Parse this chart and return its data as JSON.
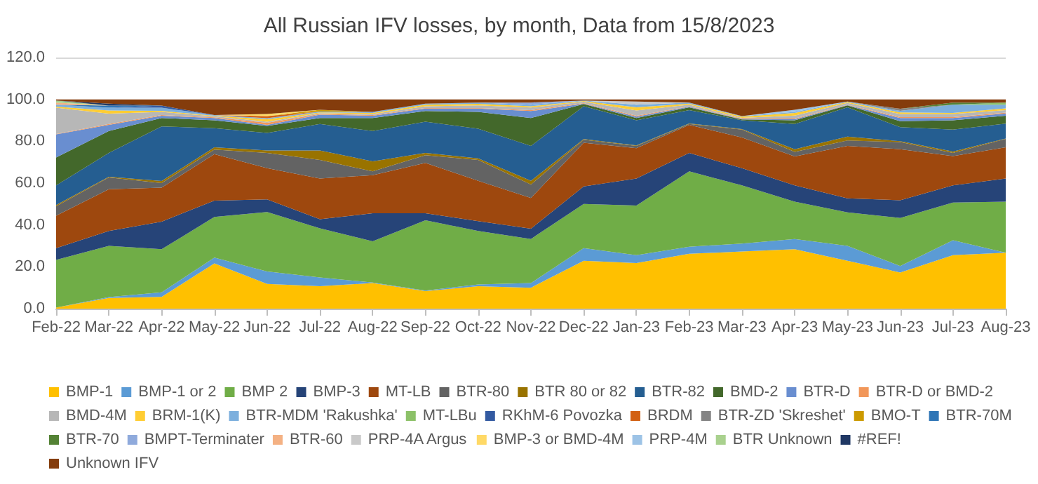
{
  "chart_data": {
    "type": "area",
    "stacked": true,
    "title": "All Russian IFV losses, by month, Data from 15/8/2023",
    "categories": [
      "Feb-22",
      "Mar-22",
      "Apr-22",
      "May-22",
      "Jun-22",
      "Jul-22",
      "Aug-22",
      "Sep-22",
      "Oct-22",
      "Nov-22",
      "Dec-22",
      "Jan-23",
      "Feb-23",
      "Mar-23",
      "Apr-23",
      "May-23",
      "Jun-23",
      "Jul-23",
      "Aug-23"
    ],
    "ylim": [
      0,
      120
    ],
    "yticks": [
      {
        "value": 0,
        "label": "0.0"
      },
      {
        "value": 20,
        "label": "20.0"
      },
      {
        "value": 40,
        "label": "40.0"
      },
      {
        "value": 60,
        "label": "60.0"
      },
      {
        "value": 80,
        "label": "80.0"
      },
      {
        "value": 100,
        "label": "100.0"
      },
      {
        "value": 120,
        "label": "120.0"
      }
    ],
    "grid": "y",
    "legend": "bottom",
    "series": [
      {
        "name": "BMP-1",
        "color": "#ffc000",
        "values": [
          0.5,
          5.1,
          5.6,
          21.6,
          11.8,
          10.7,
          12.2,
          8.4,
          10.7,
          10,
          22.9,
          21.8,
          26.2,
          27.3,
          28.4,
          22.9,
          17.3,
          25.6,
          26.7
        ]
      },
      {
        "name": "BMP-1 or 2",
        "color": "#5b9bd5",
        "values": [
          0,
          0.4,
          2.2,
          2.8,
          6,
          4.2,
          0.3,
          0.2,
          0.9,
          2.2,
          6,
          3.8,
          3.4,
          3.8,
          4.9,
          7.1,
          3.1,
          7.1,
          0
        ]
      },
      {
        "name": "BMP 2",
        "color": "#70ad47",
        "values": [
          22.8,
          24.5,
          20.6,
          19.4,
          28.4,
          23.5,
          19.7,
          33.6,
          25.5,
          21.1,
          21.1,
          23.7,
          36,
          27.8,
          17.8,
          16,
          22.9,
          18,
          24.4
        ]
      },
      {
        "name": "BMP-3",
        "color": "#264478",
        "values": [
          5.6,
          7.1,
          13.2,
          7.8,
          6,
          4.3,
          13.4,
          3.4,
          4.7,
          4.9,
          8.4,
          12.9,
          8.8,
          8.2,
          7.8,
          6.7,
          8.5,
          8.2,
          11.1
        ]
      },
      {
        "name": "MT-LB",
        "color": "#9e480e",
        "values": [
          15.5,
          20,
          16.2,
          22.2,
          14.9,
          19.5,
          18.2,
          24,
          19.3,
          14.7,
          20.9,
          14.5,
          13.4,
          14.7,
          13.8,
          25.1,
          24.4,
          14,
          14.9
        ]
      },
      {
        "name": "BTR-80",
        "color": "#636363",
        "values": [
          4.5,
          5.6,
          2.2,
          2.2,
          7.3,
          8.9,
          1.8,
          3.7,
          10,
          6.4,
          1.4,
          1.1,
          0.4,
          3.8,
          2.2,
          2.6,
          3.4,
          1.5,
          4
        ]
      },
      {
        "name": "BTR 80 or 82",
        "color": "#997300",
        "values": [
          0.6,
          0.3,
          1,
          1.1,
          1.2,
          4.5,
          4.8,
          1.1,
          0.7,
          1.8,
          0.3,
          0.2,
          0.3,
          0.2,
          1.3,
          1.8,
          0.4,
          0.7,
          0.2
        ]
      },
      {
        "name": "BTR-82",
        "color": "#255e91",
        "values": [
          9.4,
          11.4,
          26.1,
          9.1,
          8.4,
          12.6,
          14.5,
          14.9,
          14.2,
          16.7,
          15.7,
          12,
          6.4,
          4.2,
          12,
          14,
          6.7,
          10.5,
          7.1
        ]
      },
      {
        "name": "BMD-2",
        "color": "#43682b",
        "values": [
          13.3,
          10.5,
          4,
          3.8,
          3.3,
          2.9,
          6.2,
          5.1,
          8,
          13.3,
          1.1,
          1.1,
          1.3,
          0.4,
          1.8,
          0.9,
          2.9,
          4.4,
          3.8
        ]
      },
      {
        "name": "BTR-D",
        "color": "#698ed0",
        "values": [
          11.1,
          2.9,
          1.1,
          1.1,
          0.5,
          1.6,
          1.1,
          1.2,
          1.6,
          3.3,
          0.2,
          0.7,
          0.3,
          0.2,
          0.5,
          0.2,
          1.5,
          1.1,
          1.1
        ]
      },
      {
        "name": "BTR-D or BMD-2",
        "color": "#f1975a",
        "values": [
          0.2,
          0.4,
          0.3,
          0.3,
          1,
          0.3,
          0.3,
          0.3,
          0.3,
          0.5,
          0.2,
          0.4,
          0.2,
          0.2,
          0.3,
          0.2,
          0.4,
          0.4,
          0.4
        ]
      },
      {
        "name": "BMD-4M",
        "color": "#b7b7b7",
        "values": [
          12.5,
          5,
          1.5,
          0.5,
          0.5,
          0.4,
          0.5,
          0.8,
          1.2,
          1.2,
          0.7,
          2.5,
          0.8,
          0.4,
          1.5,
          0.8,
          1.5,
          1.5,
          1.2
        ]
      },
      {
        "name": "BRM-1(K)",
        "color": "#ffcd33",
        "values": [
          0.5,
          1.5,
          0.5,
          0.3,
          1.2,
          0.4,
          0.5,
          0.8,
          0.8,
          0.6,
          0.3,
          1.5,
          0.5,
          0.6,
          1.2,
          0.4,
          0.8,
          0.5,
          0.8
        ]
      },
      {
        "name": "BTR-MDM 'Rakushka'",
        "color": "#7cafdd",
        "values": [
          1,
          1.3,
          1.5,
          0.3,
          0.5,
          0.4,
          0.5,
          0.5,
          0.6,
          0.8,
          0.3,
          1.3,
          0.5,
          0.2,
          0.5,
          0.3,
          0.7,
          4,
          1.8
        ]
      },
      {
        "name": "MT-LBu",
        "color": "#8cc168",
        "values": [
          null,
          null,
          null,
          null,
          null,
          null,
          null,
          null,
          null,
          null,
          null,
          null,
          null,
          null,
          null,
          null,
          null,
          0,
          1
        ]
      },
      {
        "name": "RKhM-6 Povozka",
        "color": "#335aa1",
        "values": [
          null,
          0,
          1,
          0,
          null,
          null,
          null,
          null,
          null,
          null,
          null,
          null,
          null,
          null,
          null,
          null,
          null,
          null,
          null
        ]
      },
      {
        "name": "BRDM",
        "color": "#d26012",
        "values": [
          null,
          null,
          null,
          0,
          1,
          0,
          null,
          null,
          null,
          null,
          null,
          null,
          null,
          null,
          null,
          null,
          null,
          null,
          null
        ]
      },
      {
        "name": "BTR-ZD 'Skreshet'",
        "color": "#848484",
        "values": [
          null,
          null,
          null,
          null,
          null,
          null,
          null,
          null,
          null,
          null,
          null,
          null,
          null,
          null,
          null,
          0,
          1,
          0,
          null
        ]
      },
      {
        "name": "BMO-T",
        "color": "#cc9a00",
        "values": [
          null,
          null,
          null,
          null,
          0,
          0.8,
          0,
          null,
          null,
          null,
          null,
          null,
          null,
          null,
          null,
          null,
          null,
          null,
          null
        ]
      },
      {
        "name": "BTR-70M",
        "color": "#2e75b6",
        "values": [
          0,
          1,
          0,
          null,
          null,
          null,
          null,
          null,
          null,
          null,
          null,
          null,
          null,
          null,
          null,
          null,
          null,
          null,
          null
        ]
      },
      {
        "name": "BTR-70",
        "color": "#548235",
        "values": [
          null,
          null,
          null,
          null,
          null,
          null,
          null,
          null,
          null,
          null,
          null,
          null,
          null,
          null,
          null,
          null,
          0,
          1,
          0
        ]
      },
      {
        "name": "BMPT-Terminater",
        "color": "#8faadc",
        "values": [
          null,
          null,
          null,
          null,
          null,
          null,
          null,
          null,
          0,
          1,
          0,
          null,
          null,
          null,
          null,
          null,
          null,
          null,
          null
        ]
      },
      {
        "name": "BTR-60",
        "color": "#f4b183",
        "values": [
          1,
          0,
          null,
          null,
          null,
          null,
          null,
          null,
          null,
          null,
          null,
          null,
          null,
          null,
          null,
          null,
          null,
          null,
          null
        ]
      },
      {
        "name": "PRP-4A Argus",
        "color": "#c9c9c9",
        "values": [
          null,
          null,
          null,
          null,
          null,
          null,
          null,
          null,
          null,
          null,
          0,
          1.5,
          0,
          null,
          null,
          null,
          null,
          null,
          null
        ]
      },
      {
        "name": "BMP-3 or BMD-4M",
        "color": "#ffd966",
        "values": [
          null,
          null,
          null,
          0,
          1,
          0,
          null,
          null,
          null,
          null,
          null,
          null,
          null,
          null,
          null,
          null,
          null,
          null,
          null
        ]
      },
      {
        "name": "PRP-4M",
        "color": "#9dc3e6",
        "values": [
          null,
          null,
          null,
          null,
          null,
          null,
          null,
          null,
          null,
          null,
          null,
          null,
          null,
          0,
          1,
          0,
          null,
          null,
          null
        ]
      },
      {
        "name": "BTR Unknown",
        "color": "#a9d18e",
        "values": [
          1,
          0,
          null,
          null,
          null,
          null,
          null,
          null,
          null,
          null,
          null,
          null,
          null,
          null,
          null,
          null,
          null,
          null,
          null
        ]
      },
      {
        "name": "#REF!",
        "color": "#203864",
        "values": [
          0,
          1,
          0,
          null,
          null,
          null,
          null,
          null,
          null,
          null,
          null,
          null,
          null,
          null,
          null,
          null,
          null,
          null,
          null
        ]
      },
      {
        "name": "Unknown IFV",
        "color": "#843c0c",
        "values": [
          0.5,
          2,
          3,
          7.5,
          7,
          5,
          6,
          2,
          1.5,
          1.5,
          0.5,
          1,
          1.5,
          8,
          5,
          1,
          4.5,
          1.5,
          1.5
        ]
      }
    ]
  }
}
